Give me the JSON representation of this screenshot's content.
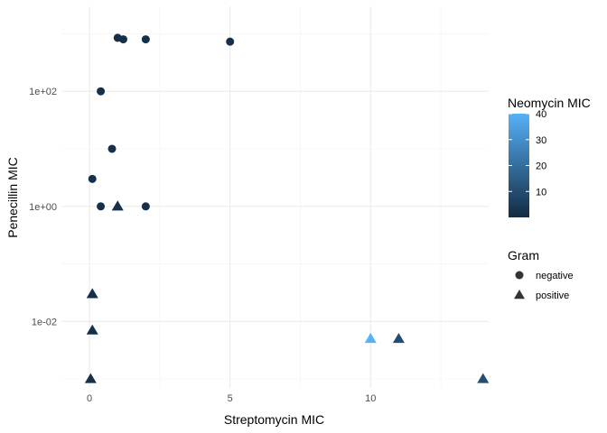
{
  "chart_data": {
    "type": "scatter",
    "title": "",
    "xlabel": "Streptomycin MIC",
    "ylabel": "Penecillin MIC",
    "xlim": [
      -1,
      14.2
    ],
    "ylim": [
      0.0007,
      3000
    ],
    "y_scale": "log10",
    "grid": true,
    "x_ticks": [
      0,
      5,
      10
    ],
    "x_tick_labels": [
      "0",
      "5",
      "10"
    ],
    "y_ticks": [
      100,
      1,
      0.01
    ],
    "y_tick_labels": [
      "1e+02",
      "1e+00",
      "1e-02"
    ],
    "colorbar": {
      "title": "Neomycin MIC",
      "min": 0,
      "max": 40,
      "ticks": [
        10,
        20,
        30,
        40
      ],
      "tick_labels": [
        "10",
        "20",
        "30",
        "40"
      ],
      "low_color": "#132B43",
      "high_color": "#56B1F7"
    },
    "shape_legend": {
      "title": "Gram",
      "entries": [
        {
          "label": "negative",
          "shape": "circle"
        },
        {
          "label": "positive",
          "shape": "triangle"
        }
      ]
    },
    "points": [
      {
        "x": 1.0,
        "y": 850,
        "gram": "negative",
        "neomycin": 1.6
      },
      {
        "x": 1.2,
        "y": 800,
        "gram": "negative",
        "neomycin": 1.6
      },
      {
        "x": 2.0,
        "y": 800,
        "gram": "negative",
        "neomycin": 1.6
      },
      {
        "x": 5.0,
        "y": 730,
        "gram": "negative",
        "neomycin": 1.6
      },
      {
        "x": 0.4,
        "y": 100,
        "gram": "negative",
        "neomycin": 1.6
      },
      {
        "x": 0.8,
        "y": 10,
        "gram": "negative",
        "neomycin": 1.6
      },
      {
        "x": 0.1,
        "y": 3,
        "gram": "negative",
        "neomycin": 1.6
      },
      {
        "x": 0.4,
        "y": 1,
        "gram": "negative",
        "neomycin": 1.6
      },
      {
        "x": 2.0,
        "y": 1,
        "gram": "negative",
        "neomycin": 1.6
      },
      {
        "x": 1.0,
        "y": 1,
        "gram": "positive",
        "neomycin": 1.6
      },
      {
        "x": 0.1,
        "y": 0.03,
        "gram": "positive",
        "neomycin": 1.6
      },
      {
        "x": 0.1,
        "y": 0.007,
        "gram": "positive",
        "neomycin": 1.6
      },
      {
        "x": 0.04,
        "y": 0.001,
        "gram": "positive",
        "neomycin": 1.6
      },
      {
        "x": 10.0,
        "y": 0.005,
        "gram": "positive",
        "neomycin": 40
      },
      {
        "x": 11.0,
        "y": 0.005,
        "gram": "positive",
        "neomycin": 10
      },
      {
        "x": 14.0,
        "y": 0.001,
        "gram": "positive",
        "neomycin": 10
      }
    ]
  }
}
